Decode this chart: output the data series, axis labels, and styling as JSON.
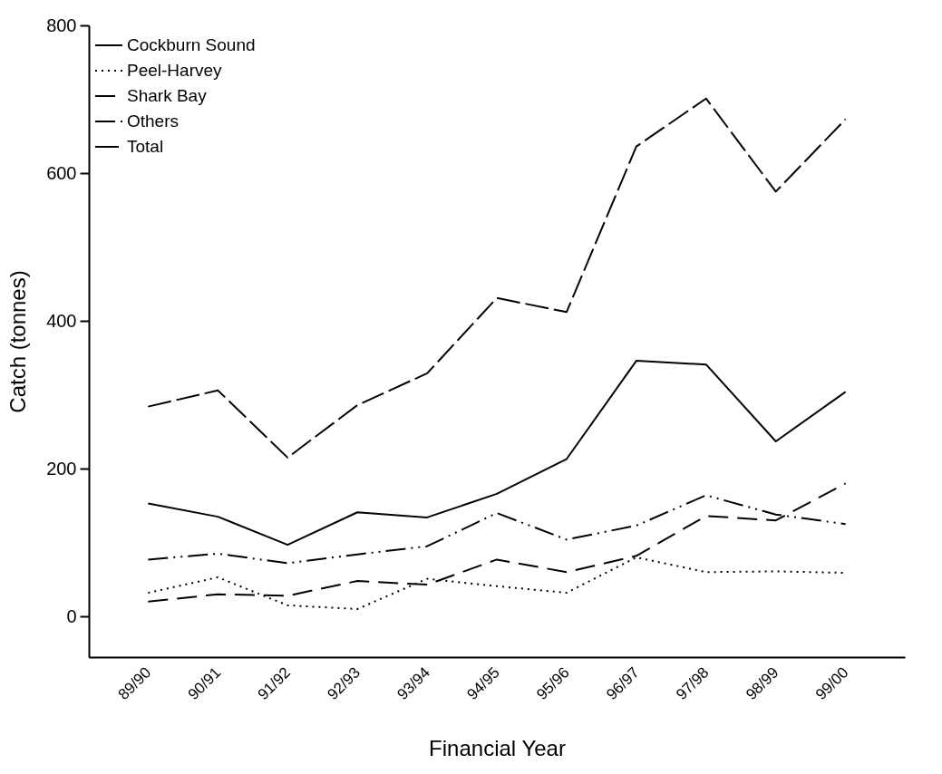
{
  "chart_data": {
    "type": "line",
    "xlabel": "Financial Year",
    "ylabel": "Catch (tonnes)",
    "categories": [
      "89/90",
      "90/91",
      "91/92",
      "92/93",
      "93/94",
      "94/95",
      "95/96",
      "96/97",
      "97/98",
      "98/99",
      "99/00"
    ],
    "ylim": [
      -55,
      800
    ],
    "yticks": [
      0,
      200,
      400,
      600,
      800
    ],
    "legend": "top left",
    "series": [
      {
        "name": "Cockburn Sound",
        "color": "#000000",
        "line_style": "solid",
        "values": [
          153,
          135,
          97,
          141,
          134,
          166,
          213,
          346,
          341,
          237,
          304
        ]
      },
      {
        "name": "Peel-Harvey",
        "color": "#000000",
        "line_style": "dotted",
        "values": [
          32,
          53,
          15,
          10,
          51,
          41,
          32,
          80,
          60,
          61,
          59
        ]
      },
      {
        "name": "Shark Bay",
        "color": "#000000",
        "line_style": "dashed",
        "values": [
          20,
          30,
          28,
          48,
          43,
          77,
          60,
          82,
          136,
          130,
          180
        ]
      },
      {
        "name": "Others",
        "color": "#000000",
        "line_style": "dashdot",
        "values": [
          77,
          85,
          72,
          84,
          95,
          140,
          104,
          123,
          164,
          138,
          125
        ]
      },
      {
        "name": "Total",
        "color": "#000000",
        "line_style": "longdash",
        "values": [
          284,
          306,
          215,
          286,
          329,
          431,
          412,
          636,
          701,
          575,
          673
        ]
      }
    ]
  }
}
